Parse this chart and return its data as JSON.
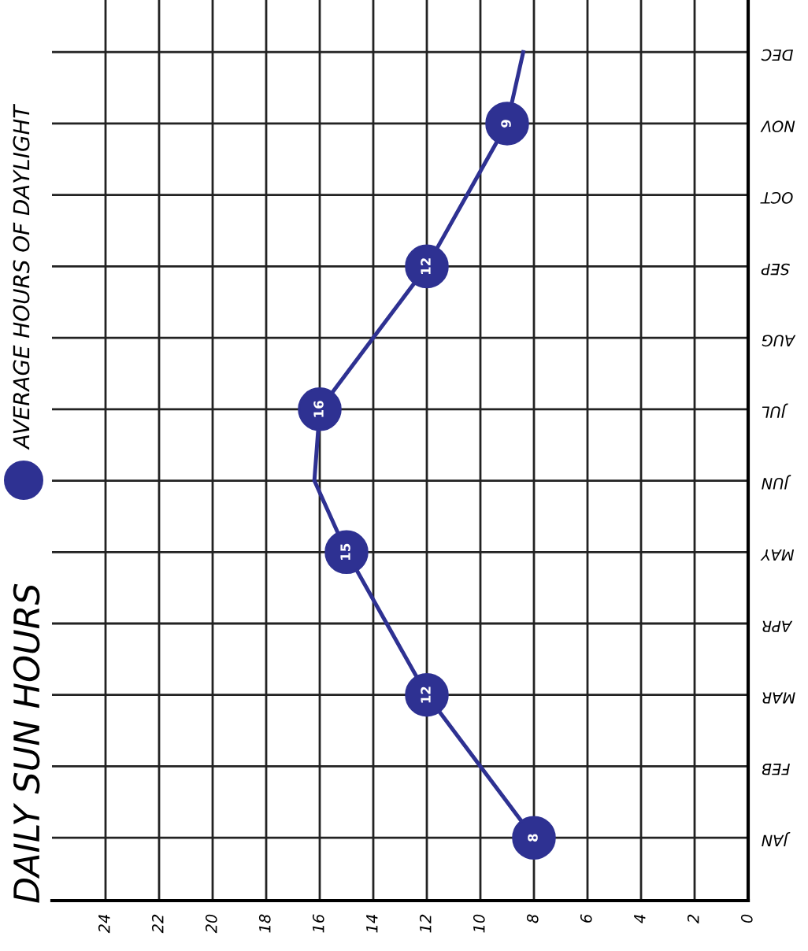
{
  "chart_data": {
    "type": "line",
    "title": "DAILY SUN HOURS",
    "categories": [
      "DEC",
      "NOV",
      "OCT",
      "SEP",
      "AUG",
      "JUL",
      "JUN",
      "MAY",
      "APR",
      "MAR",
      "FEB",
      "JAN"
    ],
    "series": [
      {
        "name": "AVERAGE HOURS OF DAYLIGHT",
        "color": "#2e3192",
        "values": [
          8.4,
          9,
          10.5,
          12,
          14,
          16,
          16.2,
          15,
          13.5,
          12,
          10,
          8
        ],
        "value_labels": [
          null,
          "9",
          null,
          "12",
          null,
          "16",
          null,
          "15",
          null,
          "12",
          null,
          "8"
        ]
      }
    ],
    "orientation": "horizontal",
    "xlim": [
      26,
      0
    ],
    "xticks": [
      24,
      22,
      20,
      18,
      16,
      14,
      12,
      10,
      8,
      6,
      4,
      2,
      0
    ],
    "grid": true,
    "legend": "left",
    "marker": "circle",
    "line_style": "solid"
  }
}
